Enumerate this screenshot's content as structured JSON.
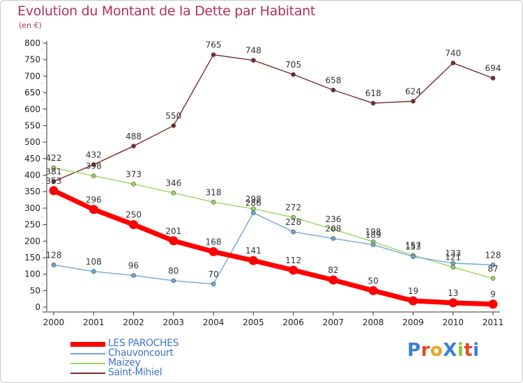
{
  "chart_data": {
    "type": "line",
    "title": "Evolution du Montant de la Dette par Habitant",
    "subtitle": "(en €)",
    "x": [
      "2000",
      "2001",
      "2002",
      "2003",
      "2004",
      "2005",
      "2006",
      "2007",
      "2008",
      "2009",
      "2010",
      "2011"
    ],
    "ylim": [
      0,
      800
    ],
    "yticks": [
      0,
      50,
      100,
      150,
      200,
      250,
      300,
      350,
      400,
      450,
      500,
      550,
      600,
      650,
      700,
      750,
      800
    ],
    "grid": false,
    "legend_position": "bottom-left",
    "series": [
      {
        "name": "LES PAROCHES",
        "color": "#ff0000",
        "values": [
          353,
          296,
          250,
          201,
          168,
          141,
          112,
          82,
          50,
          19,
          13,
          9
        ]
      },
      {
        "name": "Chauvoncourt",
        "color": "#6fa6d8",
        "values": [
          128,
          108,
          96,
          80,
          70,
          286,
          228,
          208,
          189,
          153,
          133,
          128
        ]
      },
      {
        "name": "Maizey",
        "color": "#99d65c",
        "values": [
          422,
          398,
          373,
          346,
          318,
          298,
          272,
          236,
          198,
          157,
          121,
          87
        ]
      },
      {
        "name": "Saint-Mihiel",
        "color": "#7a2a2a",
        "values": [
          381,
          432,
          488,
          550,
          765,
          748,
          705,
          658,
          618,
          624,
          740,
          694
        ]
      }
    ]
  },
  "logo": {
    "text": "ProXiti"
  }
}
